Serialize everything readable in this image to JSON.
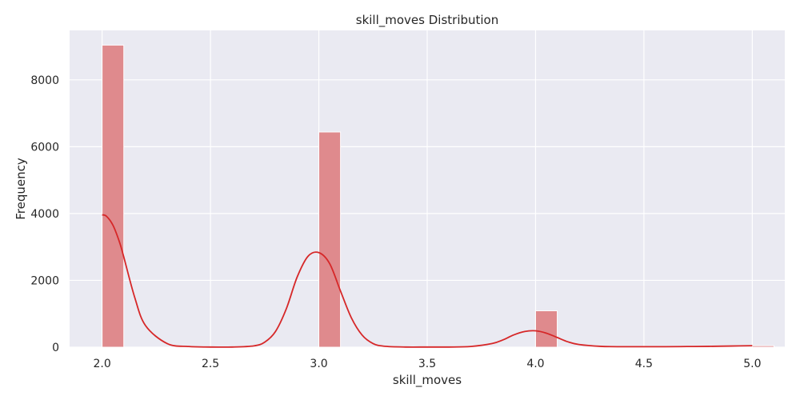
{
  "chart_data": {
    "type": "bar",
    "subtype": "histogram-with-kde",
    "title": "skill_moves Distribution",
    "xlabel": "skill_moves",
    "ylabel": "Frequency",
    "xlim": [
      1.85,
      5.15
    ],
    "ylim": [
      0,
      9480
    ],
    "xticks": [
      2.0,
      2.5,
      3.0,
      3.5,
      4.0,
      4.5,
      5.0
    ],
    "xtick_labels": [
      "2.0",
      "2.5",
      "3.0",
      "3.5",
      "4.0",
      "4.5",
      "5.0"
    ],
    "yticks": [
      0,
      2000,
      4000,
      6000,
      8000
    ],
    "ytick_labels": [
      "0",
      "2000",
      "4000",
      "6000",
      "8000"
    ],
    "grid": true,
    "bin_width": 0.1,
    "bins": [
      {
        "x0": 2.0,
        "x1": 2.1,
        "count": 9040
      },
      {
        "x0": 3.0,
        "x1": 3.1,
        "count": 6440
      },
      {
        "x0": 4.0,
        "x1": 4.1,
        "count": 1090
      },
      {
        "x0": 5.0,
        "x1": 5.1,
        "count": 45
      }
    ],
    "kde": {
      "x": [
        2.0,
        2.02,
        2.05,
        2.08,
        2.1,
        2.15,
        2.2,
        2.3,
        2.4,
        2.5,
        2.6,
        2.7,
        2.75,
        2.8,
        2.85,
        2.9,
        2.95,
        3.0,
        3.05,
        3.1,
        3.15,
        3.2,
        3.25,
        3.3,
        3.4,
        3.5,
        3.6,
        3.7,
        3.8,
        3.85,
        3.9,
        3.95,
        4.0,
        4.05,
        4.1,
        4.15,
        4.2,
        4.3,
        4.4,
        4.5,
        4.6,
        4.7,
        4.8,
        4.9,
        5.0
      ],
      "y": [
        3960,
        3920,
        3650,
        3150,
        2700,
        1500,
        650,
        110,
        20,
        5,
        5,
        40,
        150,
        470,
        1150,
        2100,
        2720,
        2830,
        2500,
        1680,
        880,
        360,
        110,
        30,
        5,
        5,
        5,
        20,
        110,
        220,
        370,
        470,
        490,
        420,
        290,
        160,
        80,
        25,
        15,
        15,
        15,
        20,
        25,
        35,
        45
      ]
    },
    "colors": {
      "bar_fill": "#df8a8d",
      "bar_edge": "#ffffff",
      "kde_line": "#d62728",
      "plot_bg": "#eaeaf2",
      "grid": "#ffffff"
    }
  }
}
